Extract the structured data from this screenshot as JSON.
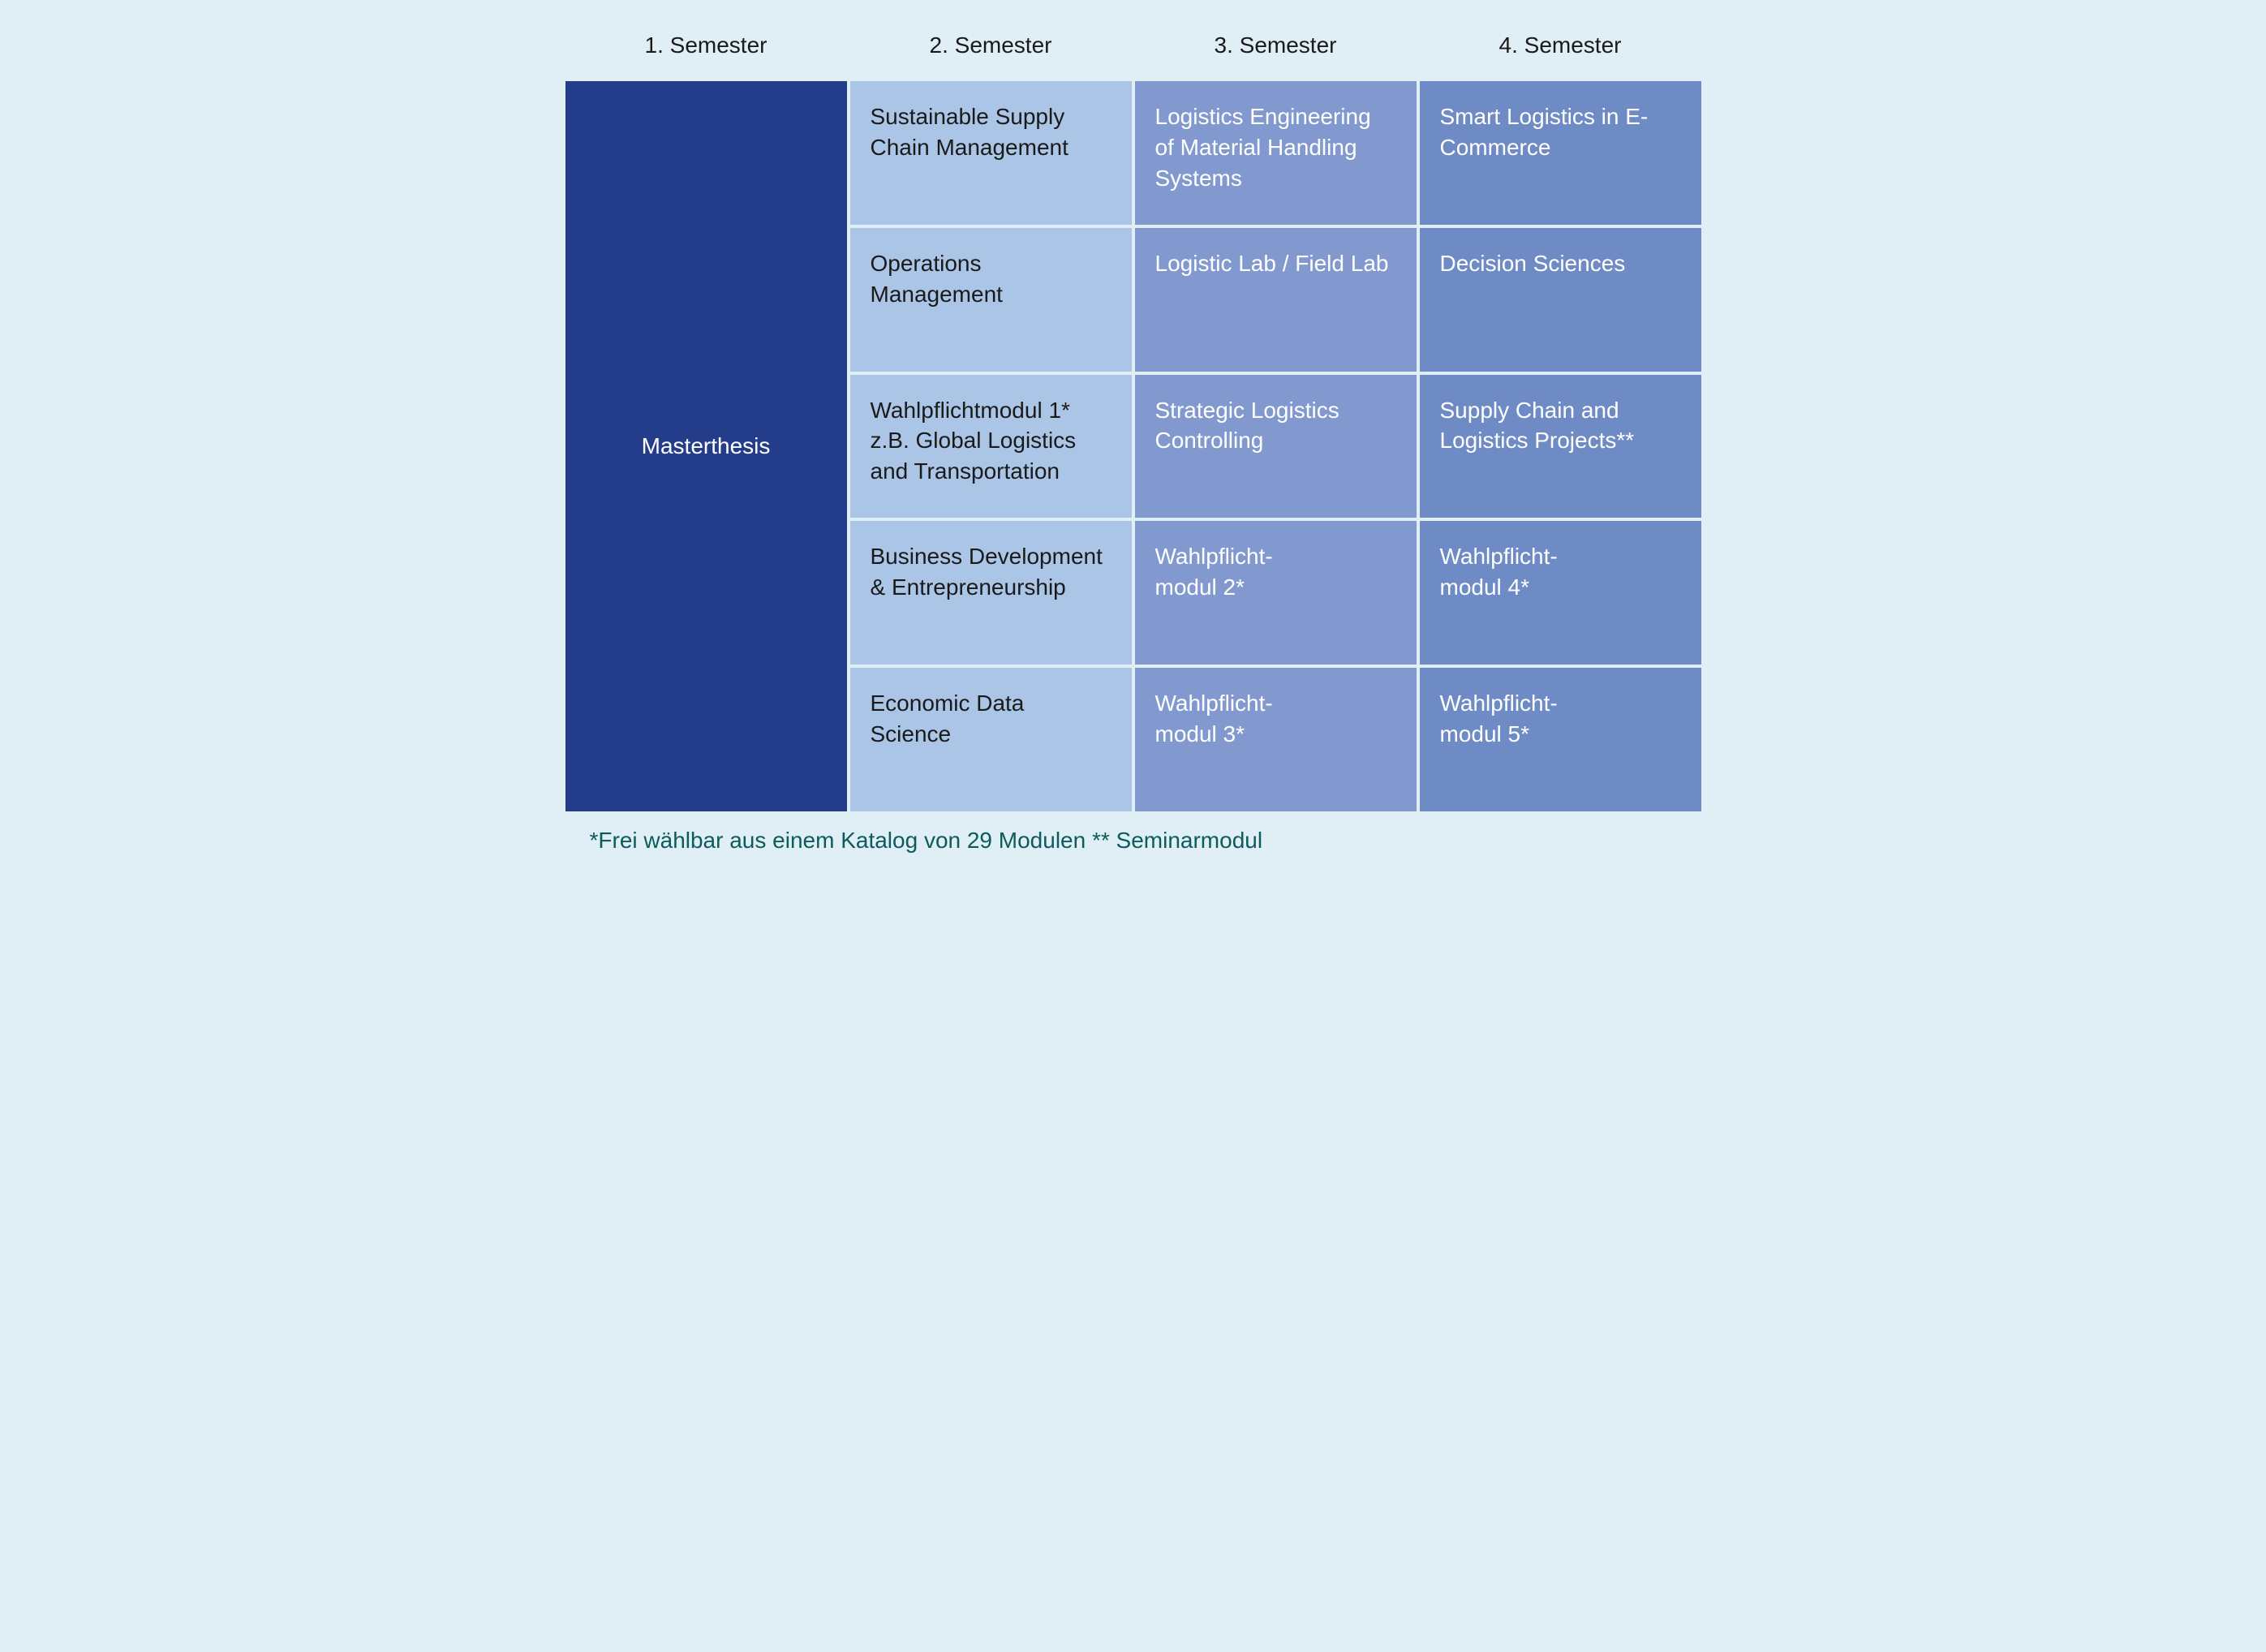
{
  "type": "table",
  "background_color": "#e0eef6",
  "header_text_color": "#1a1a1a",
  "header_fontsize": 28,
  "cell_fontsize": 28,
  "cell_padding": 25,
  "gap": 4,
  "columns": [
    {
      "label": "1. Semester",
      "bg": "#aac5e6",
      "text": "#1a1a1a"
    },
    {
      "label": "2. Semester",
      "bg": "#8199cf",
      "text": "#ffffff"
    },
    {
      "label": "3. Semester",
      "bg": "#6e8bc6",
      "text": "#ffffff"
    },
    {
      "label": "4. Semester",
      "bg": "#243d8b",
      "text": "#ffffff"
    }
  ],
  "rows": [
    [
      "Sustainable Supply Chain Management",
      "Logistics Engineering of Material Handling Systems",
      "Smart Logistics in E-Commerce"
    ],
    [
      "Operations Management",
      "Logistic Lab / Field Lab",
      "Decision Sciences"
    ],
    [
      "Wahlpflichtmodul 1* z.B. Global Logistics and Transportation",
      "Strategic Logistics Controlling",
      "Supply Chain and Logistics Projects**"
    ],
    [
      "Business Development & Entrepreneurship",
      "Wahlpflicht-modul 2*",
      "Wahlpflicht-modul 4*"
    ],
    [
      "Economic Data Science",
      "Wahlpflicht-modul 3*",
      "Wahlpflicht-modul 5*"
    ]
  ],
  "col4_label": "Masterthesis",
  "footnote": {
    "text": "*Frei wählbar aus einem Katalog von 29 Modulen ** Seminarmodul",
    "color": "#0d5b5b"
  }
}
